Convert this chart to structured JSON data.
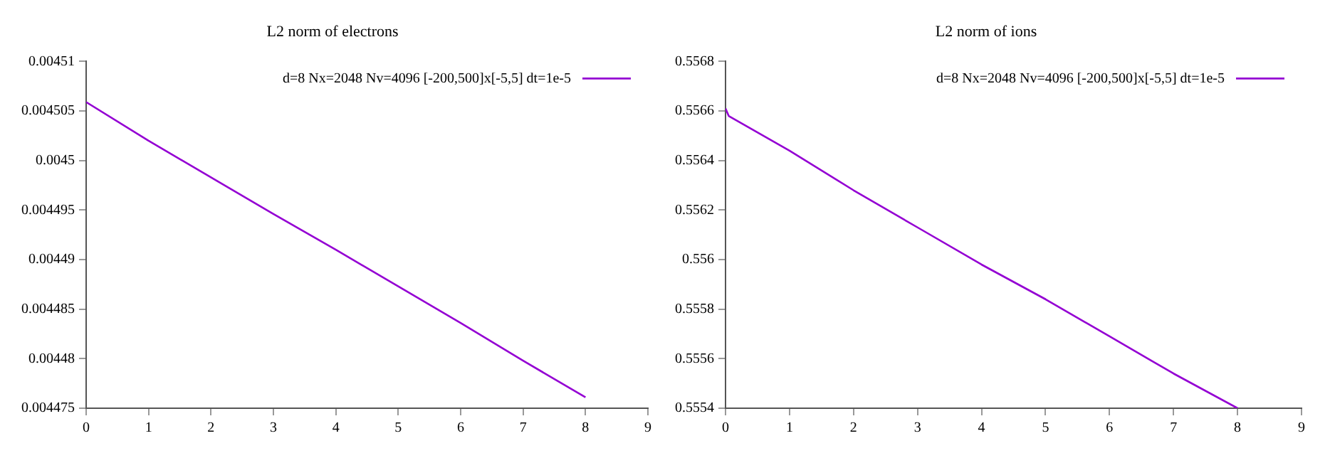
{
  "chart_data": [
    {
      "type": "line",
      "title": "L2 norm of electrons",
      "legend": "top right",
      "grid": false,
      "marker": "none",
      "line_style": "solid",
      "xlim": [
        0,
        9
      ],
      "xticks": [
        0,
        1,
        2,
        3,
        4,
        5,
        6,
        7,
        8,
        9
      ],
      "ylim": [
        0.004475,
        0.00451
      ],
      "yticks": [
        0.004475,
        0.00448,
        0.004485,
        0.00449,
        0.004495,
        0.0045,
        0.004505,
        0.00451
      ],
      "series": [
        {
          "name": "d=8 Nx=2048 Nv=4096 [-200,500]x[-5,5] dt=1e-5",
          "color": "#9400d3",
          "x": [
            0,
            1,
            2,
            3,
            4,
            5,
            6,
            7,
            8
          ],
          "values": [
            0.0045059,
            0.004502,
            0.0044983,
            0.0044946,
            0.004491,
            0.0044873,
            0.0044836,
            0.0044798,
            0.0044761
          ]
        }
      ]
    },
    {
      "type": "line",
      "title": "L2 norm of ions",
      "legend": "top right",
      "grid": false,
      "marker": "none",
      "line_style": "solid",
      "xlim": [
        0,
        9
      ],
      "xticks": [
        0,
        1,
        2,
        3,
        4,
        5,
        6,
        7,
        8,
        9
      ],
      "ylim": [
        0.5554,
        0.5568
      ],
      "yticks": [
        0.5554,
        0.5556,
        0.5558,
        0.556,
        0.5562,
        0.5564,
        0.5566,
        0.5568
      ],
      "series": [
        {
          "name": "d=8 Nx=2048 Nv=4096 [-200,500]x[-5,5] dt=1e-5",
          "color": "#9400d3",
          "x": [
            0,
            0.05,
            1,
            2,
            3,
            4,
            5,
            6,
            7,
            8
          ],
          "values": [
            0.55661,
            0.55658,
            0.55644,
            0.55628,
            0.55613,
            0.55598,
            0.55584,
            0.55569,
            0.55554,
            0.5554
          ]
        }
      ]
    }
  ]
}
